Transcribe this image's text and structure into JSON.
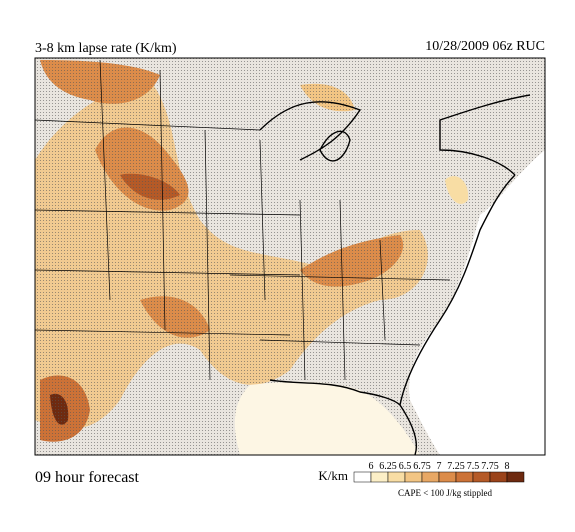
{
  "header": {
    "title": "3-8 km lapse rate (K/km)",
    "datetime": "10/28/2009  06z  RUC"
  },
  "footer": {
    "forecast": "09 hour forecast",
    "note": "CAPE < 100 J/kg stippled"
  },
  "legend": {
    "unit": "K/km",
    "levels": [
      6,
      6.25,
      6.5,
      6.75,
      7,
      7.25,
      7.5,
      7.75,
      8
    ],
    "colors": [
      "#ffffff",
      "#fcefc7",
      "#f8dda4",
      "#f2c584",
      "#e8a865",
      "#dc8c4a",
      "#cc7237",
      "#b55a27",
      "#9b431a",
      "#6e2a10"
    ]
  }
}
